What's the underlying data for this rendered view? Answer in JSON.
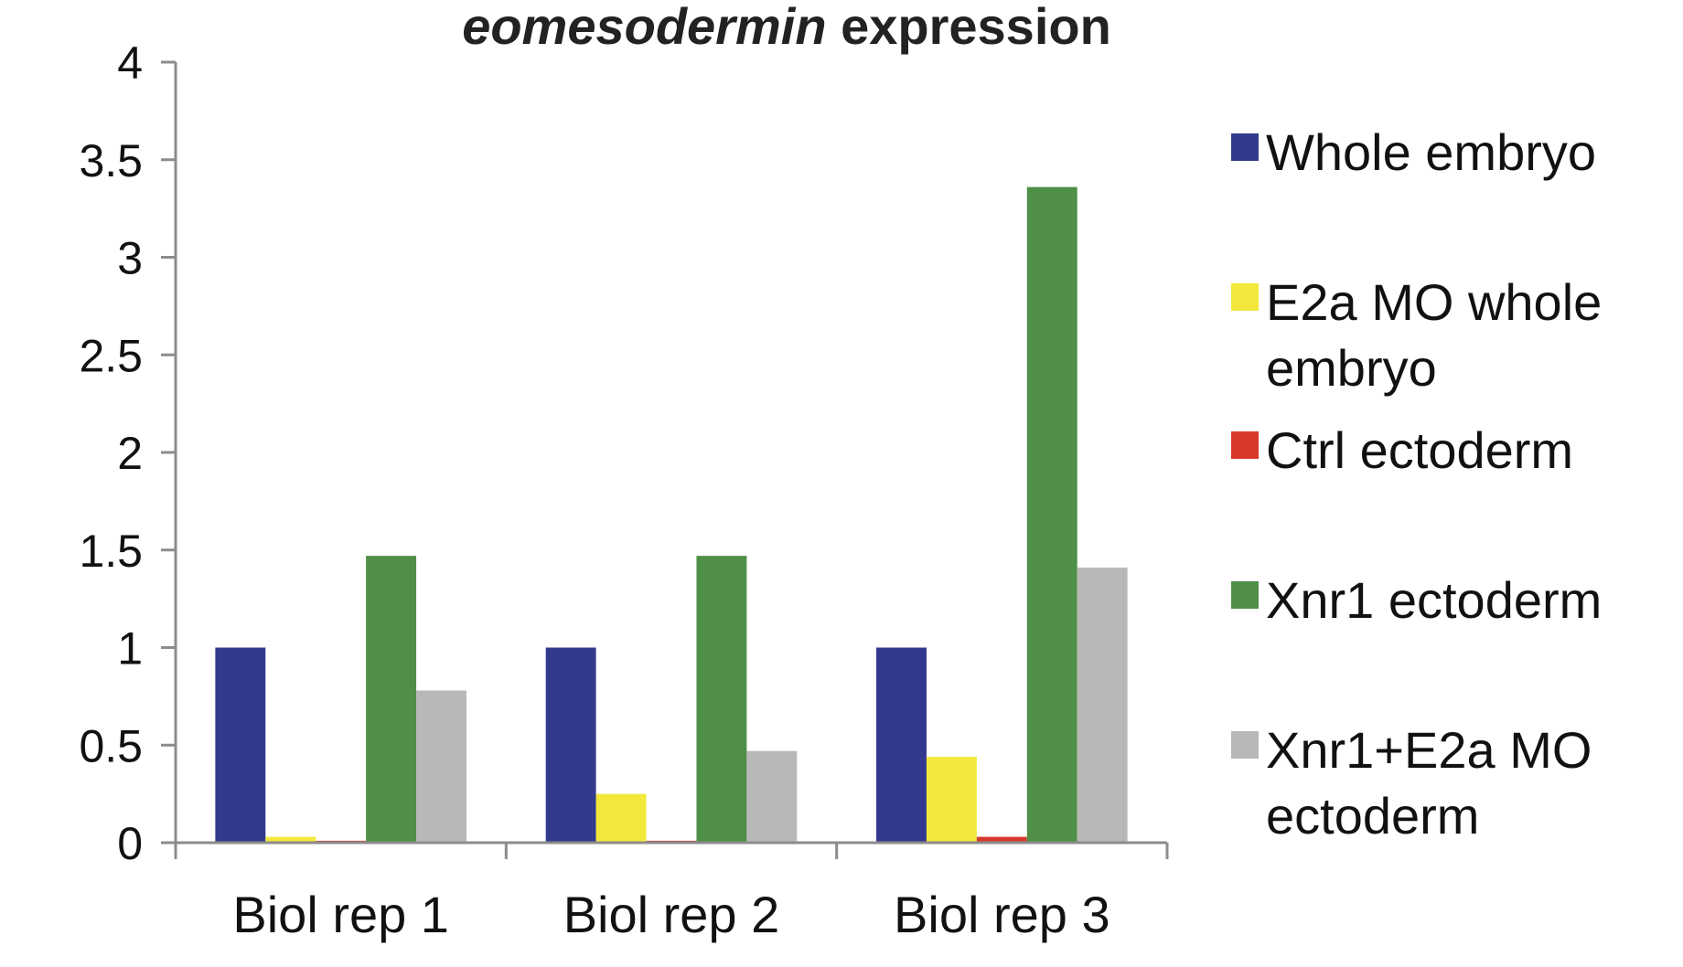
{
  "chart_data": {
    "type": "bar",
    "title_italic": "eomesodermin",
    "title_rest": " expression",
    "xlabel": "",
    "ylabel": "",
    "ylim": [
      0,
      4
    ],
    "yticks": [
      "0",
      "0.5",
      "1",
      "1.5",
      "2",
      "2.5",
      "3",
      "3.5",
      "4"
    ],
    "grid": false,
    "legend_position": "right",
    "categories": [
      "Biol rep 1",
      "Biol rep 2",
      "Biol rep 3"
    ],
    "series": [
      {
        "name": "Whole embryo",
        "legend_lines": [
          "Whole embryo"
        ],
        "color": "#333a8e",
        "values": [
          1.0,
          1.0,
          1.0
        ]
      },
      {
        "name": "E2a MO whole embryo",
        "legend_lines": [
          "E2a MO whole",
          "embryo"
        ],
        "color": "#f2e83c",
        "values": [
          0.03,
          0.25,
          0.44
        ]
      },
      {
        "name": "Ctrl ectoderm",
        "legend_lines": [
          "Ctrl ectoderm"
        ],
        "color": "#d6392b",
        "values": [
          0.01,
          0.01,
          0.03
        ]
      },
      {
        "name": "Xnr1 ectoderm",
        "legend_lines": [
          "Xnr1 ectoderm"
        ],
        "color": "#4f8f47",
        "values": [
          1.47,
          1.47,
          3.36
        ]
      },
      {
        "name": "Xnr1+E2a MO ectoderm",
        "legend_lines": [
          "Xnr1+E2a MO",
          "ectoderm"
        ],
        "color": "#b8b8b8",
        "values": [
          0.78,
          0.47,
          1.41
        ]
      }
    ]
  }
}
